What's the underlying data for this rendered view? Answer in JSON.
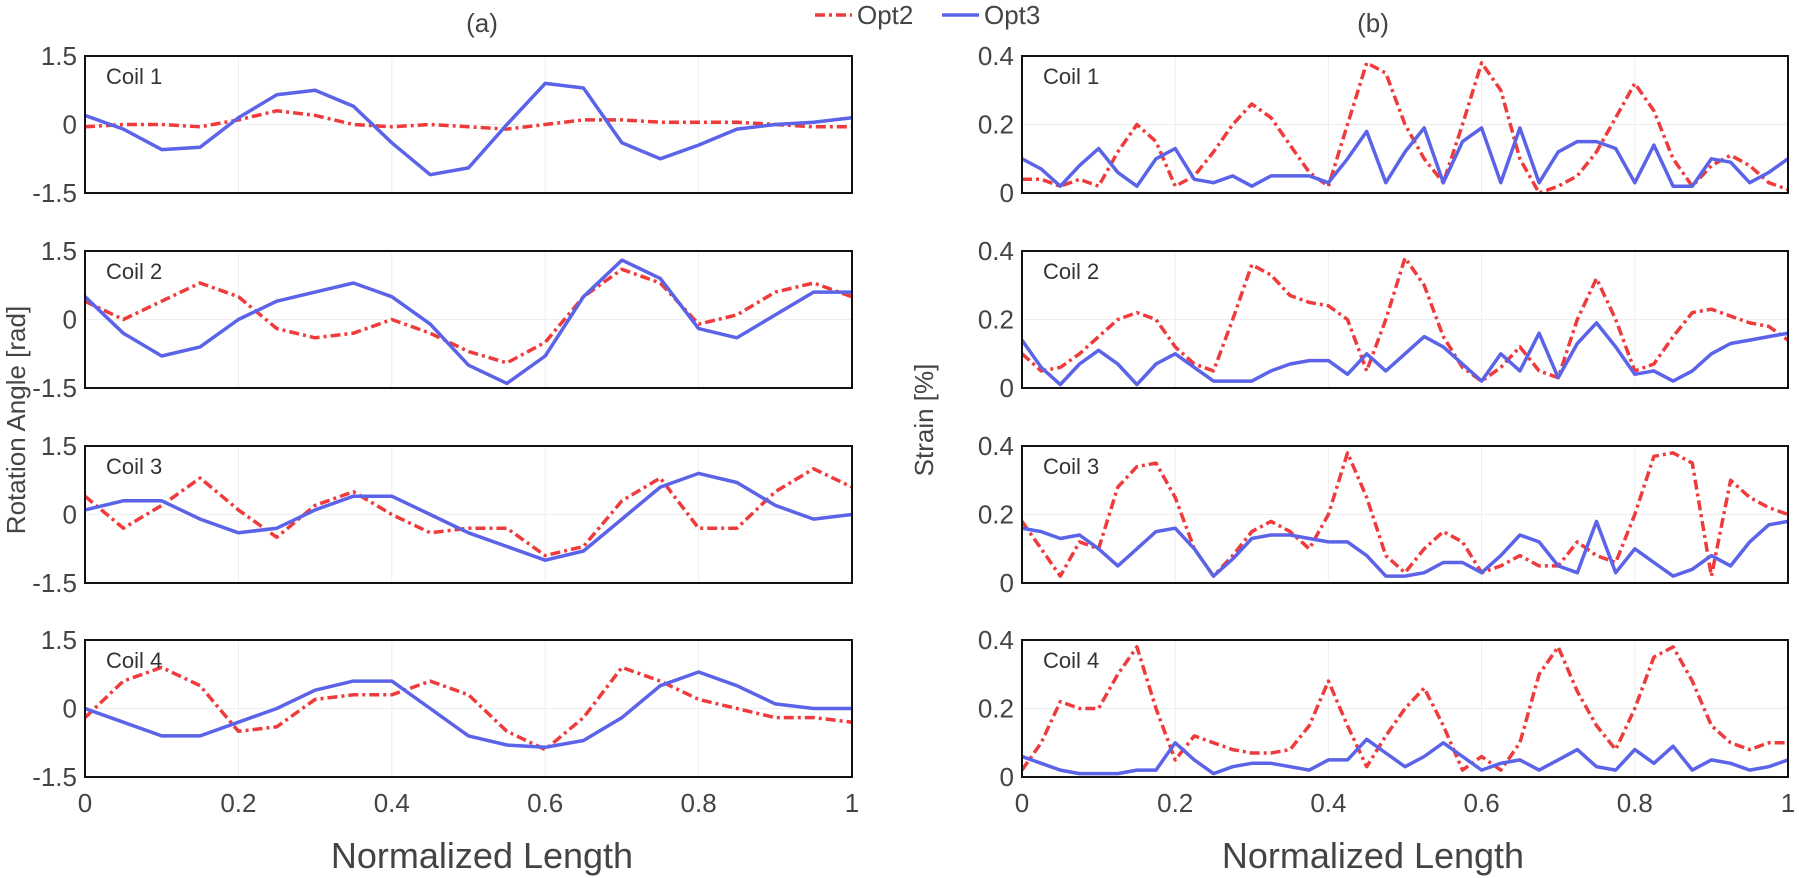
{
  "legend": {
    "items": [
      {
        "label": "Opt2",
        "color": "#ef3b3b",
        "style": "dashdot"
      },
      {
        "label": "Opt3",
        "color": "#5b63e8",
        "style": "solid"
      }
    ]
  },
  "panels": {
    "left_label": "(a)",
    "right_label": "(b)",
    "left_ylabel": "Rotation Angle [rad]",
    "right_ylabel": "Strain [%]",
    "xlabel": "Normalized Length",
    "x_ticks": [
      "0",
      "0.2",
      "0.4",
      "0.6",
      "0.8",
      "1"
    ],
    "left_y_ticks": [
      "1.5",
      "0",
      "-1.5"
    ],
    "right_y_ticks": [
      "0.4",
      "0.2",
      "0"
    ]
  },
  "chart_data": [
    {
      "type": "line",
      "title": "Coil 1",
      "xlim": [
        0,
        1
      ],
      "ylim": [
        -1.5,
        1.5
      ],
      "xlabel": "Normalized Length",
      "ylabel": "Rotation Angle [rad]",
      "x": [
        0,
        0.05,
        0.1,
        0.15,
        0.2,
        0.25,
        0.3,
        0.35,
        0.4,
        0.45,
        0.5,
        0.55,
        0.6,
        0.65,
        0.7,
        0.75,
        0.8,
        0.85,
        0.9,
        0.95,
        1
      ],
      "series": [
        {
          "name": "Opt2",
          "values": [
            -0.05,
            0.0,
            0.0,
            -0.05,
            0.1,
            0.3,
            0.2,
            0.0,
            -0.05,
            0.0,
            -0.05,
            -0.1,
            0.0,
            0.1,
            0.1,
            0.05,
            0.05,
            0.05,
            0.0,
            -0.05,
            -0.05
          ]
        },
        {
          "name": "Opt3",
          "values": [
            0.2,
            -0.1,
            -0.55,
            -0.5,
            0.15,
            0.65,
            0.75,
            0.4,
            -0.4,
            -1.1,
            -0.95,
            0.0,
            0.9,
            0.8,
            -0.4,
            -0.75,
            -0.45,
            -0.1,
            0.0,
            0.05,
            0.15
          ]
        }
      ]
    },
    {
      "type": "line",
      "title": "Coil 2",
      "xlim": [
        0,
        1
      ],
      "ylim": [
        -1.5,
        1.5
      ],
      "x": [
        0,
        0.05,
        0.1,
        0.15,
        0.2,
        0.25,
        0.3,
        0.35,
        0.4,
        0.45,
        0.5,
        0.55,
        0.6,
        0.65,
        0.7,
        0.75,
        0.8,
        0.85,
        0.9,
        0.95,
        1
      ],
      "series": [
        {
          "name": "Opt2",
          "values": [
            0.4,
            0.0,
            0.4,
            0.8,
            0.5,
            -0.2,
            -0.4,
            -0.3,
            0.0,
            -0.3,
            -0.7,
            -0.95,
            -0.5,
            0.5,
            1.1,
            0.8,
            -0.1,
            0.1,
            0.6,
            0.8,
            0.5
          ]
        },
        {
          "name": "Opt3",
          "values": [
            0.5,
            -0.3,
            -0.8,
            -0.6,
            0.0,
            0.4,
            0.6,
            0.8,
            0.5,
            -0.1,
            -1.0,
            -1.4,
            -0.8,
            0.5,
            1.3,
            0.9,
            -0.2,
            -0.4,
            0.1,
            0.6,
            0.6
          ]
        }
      ]
    },
    {
      "type": "line",
      "title": "Coil 3",
      "xlim": [
        0,
        1
      ],
      "ylim": [
        -1.5,
        1.5
      ],
      "x": [
        0,
        0.05,
        0.1,
        0.15,
        0.2,
        0.25,
        0.3,
        0.35,
        0.4,
        0.45,
        0.5,
        0.55,
        0.6,
        0.65,
        0.7,
        0.75,
        0.8,
        0.85,
        0.9,
        0.95,
        1
      ],
      "series": [
        {
          "name": "Opt2",
          "values": [
            0.4,
            -0.3,
            0.2,
            0.8,
            0.1,
            -0.5,
            0.2,
            0.5,
            0.0,
            -0.4,
            -0.3,
            -0.3,
            -0.9,
            -0.7,
            0.3,
            0.8,
            -0.3,
            -0.3,
            0.5,
            1.0,
            0.6
          ]
        },
        {
          "name": "Opt3",
          "values": [
            0.1,
            0.3,
            0.3,
            -0.1,
            -0.4,
            -0.3,
            0.1,
            0.4,
            0.4,
            0.0,
            -0.4,
            -0.7,
            -1.0,
            -0.8,
            -0.1,
            0.6,
            0.9,
            0.7,
            0.2,
            -0.1,
            0.0
          ]
        }
      ]
    },
    {
      "type": "line",
      "title": "Coil 4",
      "xlim": [
        0,
        1
      ],
      "ylim": [
        -1.5,
        1.5
      ],
      "x": [
        0,
        0.05,
        0.1,
        0.15,
        0.2,
        0.25,
        0.3,
        0.35,
        0.4,
        0.45,
        0.5,
        0.55,
        0.6,
        0.65,
        0.7,
        0.75,
        0.8,
        0.85,
        0.9,
        0.95,
        1
      ],
      "series": [
        {
          "name": "Opt2",
          "values": [
            -0.2,
            0.6,
            0.9,
            0.5,
            -0.5,
            -0.4,
            0.2,
            0.3,
            0.3,
            0.6,
            0.3,
            -0.5,
            -0.9,
            -0.2,
            0.9,
            0.6,
            0.2,
            0.0,
            -0.2,
            -0.2,
            -0.3
          ]
        },
        {
          "name": "Opt3",
          "values": [
            0.0,
            -0.3,
            -0.6,
            -0.6,
            -0.3,
            0.0,
            0.4,
            0.6,
            0.6,
            0.0,
            -0.6,
            -0.8,
            -0.85,
            -0.7,
            -0.2,
            0.5,
            0.8,
            0.5,
            0.1,
            0.0,
            0.0
          ]
        }
      ]
    },
    {
      "type": "line",
      "title": "Coil 1",
      "xlim": [
        0,
        1
      ],
      "ylim": [
        0,
        0.4
      ],
      "xlabel": "Normalized Length",
      "ylabel": "Strain [%]",
      "x": [
        0,
        0.025,
        0.05,
        0.075,
        0.1,
        0.125,
        0.15,
        0.175,
        0.2,
        0.225,
        0.25,
        0.275,
        0.3,
        0.325,
        0.35,
        0.375,
        0.4,
        0.425,
        0.45,
        0.475,
        0.5,
        0.525,
        0.55,
        0.575,
        0.6,
        0.625,
        0.65,
        0.675,
        0.7,
        0.725,
        0.75,
        0.775,
        0.8,
        0.825,
        0.85,
        0.875,
        0.9,
        0.925,
        0.95,
        0.975,
        1
      ],
      "series": [
        {
          "name": "Opt2",
          "values": [
            0.04,
            0.04,
            0.02,
            0.04,
            0.02,
            0.12,
            0.2,
            0.15,
            0.02,
            0.05,
            0.12,
            0.2,
            0.26,
            0.22,
            0.14,
            0.06,
            0.02,
            0.2,
            0.38,
            0.35,
            0.2,
            0.1,
            0.03,
            0.2,
            0.38,
            0.3,
            0.1,
            0.0,
            0.02,
            0.05,
            0.12,
            0.22,
            0.32,
            0.24,
            0.1,
            0.02,
            0.08,
            0.11,
            0.08,
            0.03,
            0.01
          ]
        },
        {
          "name": "Opt3",
          "values": [
            0.1,
            0.07,
            0.02,
            0.08,
            0.13,
            0.06,
            0.02,
            0.1,
            0.13,
            0.04,
            0.03,
            0.05,
            0.02,
            0.05,
            0.05,
            0.05,
            0.03,
            0.1,
            0.18,
            0.03,
            0.12,
            0.19,
            0.03,
            0.15,
            0.19,
            0.03,
            0.19,
            0.03,
            0.12,
            0.15,
            0.15,
            0.13,
            0.03,
            0.14,
            0.02,
            0.02,
            0.1,
            0.09,
            0.03,
            0.06,
            0.1
          ]
        }
      ]
    },
    {
      "type": "line",
      "title": "Coil 2",
      "xlim": [
        0,
        1
      ],
      "ylim": [
        0,
        0.4
      ],
      "x": [
        0,
        0.025,
        0.05,
        0.075,
        0.1,
        0.125,
        0.15,
        0.175,
        0.2,
        0.225,
        0.25,
        0.275,
        0.3,
        0.325,
        0.35,
        0.375,
        0.4,
        0.425,
        0.45,
        0.475,
        0.5,
        0.525,
        0.55,
        0.575,
        0.6,
        0.625,
        0.65,
        0.675,
        0.7,
        0.725,
        0.75,
        0.775,
        0.8,
        0.825,
        0.85,
        0.875,
        0.9,
        0.925,
        0.95,
        0.975,
        1
      ],
      "series": [
        {
          "name": "Opt2",
          "values": [
            0.1,
            0.05,
            0.06,
            0.1,
            0.15,
            0.2,
            0.22,
            0.2,
            0.12,
            0.07,
            0.05,
            0.2,
            0.36,
            0.33,
            0.27,
            0.25,
            0.24,
            0.2,
            0.05,
            0.2,
            0.38,
            0.3,
            0.15,
            0.06,
            0.02,
            0.06,
            0.12,
            0.05,
            0.03,
            0.2,
            0.32,
            0.2,
            0.05,
            0.07,
            0.15,
            0.22,
            0.23,
            0.21,
            0.19,
            0.18,
            0.14
          ]
        },
        {
          "name": "Opt3",
          "values": [
            0.14,
            0.06,
            0.01,
            0.07,
            0.11,
            0.07,
            0.01,
            0.07,
            0.1,
            0.06,
            0.02,
            0.02,
            0.02,
            0.05,
            0.07,
            0.08,
            0.08,
            0.04,
            0.1,
            0.05,
            0.1,
            0.15,
            0.12,
            0.07,
            0.02,
            0.1,
            0.05,
            0.16,
            0.03,
            0.13,
            0.19,
            0.12,
            0.04,
            0.05,
            0.02,
            0.05,
            0.1,
            0.13,
            0.14,
            0.15,
            0.16
          ]
        }
      ]
    },
    {
      "type": "line",
      "title": "Coil 3",
      "xlim": [
        0,
        1
      ],
      "ylim": [
        0,
        0.4
      ],
      "x": [
        0,
        0.025,
        0.05,
        0.075,
        0.1,
        0.125,
        0.15,
        0.175,
        0.2,
        0.225,
        0.25,
        0.275,
        0.3,
        0.325,
        0.35,
        0.375,
        0.4,
        0.425,
        0.45,
        0.475,
        0.5,
        0.525,
        0.55,
        0.575,
        0.6,
        0.625,
        0.65,
        0.675,
        0.7,
        0.725,
        0.75,
        0.775,
        0.8,
        0.825,
        0.85,
        0.875,
        0.9,
        0.925,
        0.95,
        0.975,
        1
      ],
      "series": [
        {
          "name": "Opt2",
          "values": [
            0.18,
            0.1,
            0.02,
            0.12,
            0.1,
            0.28,
            0.34,
            0.35,
            0.25,
            0.1,
            0.02,
            0.08,
            0.15,
            0.18,
            0.15,
            0.1,
            0.2,
            0.38,
            0.25,
            0.08,
            0.03,
            0.1,
            0.15,
            0.12,
            0.03,
            0.05,
            0.08,
            0.05,
            0.05,
            0.12,
            0.08,
            0.06,
            0.2,
            0.37,
            0.38,
            0.35,
            0.02,
            0.3,
            0.25,
            0.22,
            0.2
          ]
        },
        {
          "name": "Opt3",
          "values": [
            0.16,
            0.15,
            0.13,
            0.14,
            0.1,
            0.05,
            0.1,
            0.15,
            0.16,
            0.1,
            0.02,
            0.07,
            0.13,
            0.14,
            0.14,
            0.13,
            0.12,
            0.12,
            0.08,
            0.02,
            0.02,
            0.03,
            0.06,
            0.06,
            0.03,
            0.08,
            0.14,
            0.12,
            0.05,
            0.03,
            0.18,
            0.03,
            0.1,
            0.06,
            0.02,
            0.04,
            0.08,
            0.05,
            0.12,
            0.17,
            0.18
          ]
        }
      ]
    },
    {
      "type": "line",
      "title": "Coil 4",
      "xlim": [
        0,
        1
      ],
      "ylim": [
        0,
        0.4
      ],
      "x": [
        0,
        0.025,
        0.05,
        0.075,
        0.1,
        0.125,
        0.15,
        0.175,
        0.2,
        0.225,
        0.25,
        0.275,
        0.3,
        0.325,
        0.35,
        0.375,
        0.4,
        0.425,
        0.45,
        0.475,
        0.5,
        0.525,
        0.55,
        0.575,
        0.6,
        0.625,
        0.65,
        0.675,
        0.7,
        0.725,
        0.75,
        0.775,
        0.8,
        0.825,
        0.85,
        0.875,
        0.9,
        0.925,
        0.95,
        0.975,
        1
      ],
      "series": [
        {
          "name": "Opt2",
          "values": [
            0.02,
            0.1,
            0.22,
            0.2,
            0.2,
            0.3,
            0.38,
            0.2,
            0.05,
            0.12,
            0.1,
            0.08,
            0.07,
            0.07,
            0.08,
            0.15,
            0.28,
            0.15,
            0.03,
            0.12,
            0.2,
            0.26,
            0.15,
            0.02,
            0.06,
            0.02,
            0.1,
            0.3,
            0.38,
            0.25,
            0.15,
            0.08,
            0.2,
            0.35,
            0.38,
            0.28,
            0.15,
            0.1,
            0.08,
            0.1,
            0.1
          ]
        },
        {
          "name": "Opt3",
          "values": [
            0.06,
            0.04,
            0.02,
            0.01,
            0.01,
            0.01,
            0.02,
            0.02,
            0.1,
            0.05,
            0.01,
            0.03,
            0.04,
            0.04,
            0.03,
            0.02,
            0.05,
            0.05,
            0.11,
            0.07,
            0.03,
            0.06,
            0.1,
            0.06,
            0.02,
            0.04,
            0.05,
            0.02,
            0.05,
            0.08,
            0.03,
            0.02,
            0.08,
            0.04,
            0.09,
            0.02,
            0.05,
            0.04,
            0.02,
            0.03,
            0.05
          ]
        }
      ]
    }
  ]
}
